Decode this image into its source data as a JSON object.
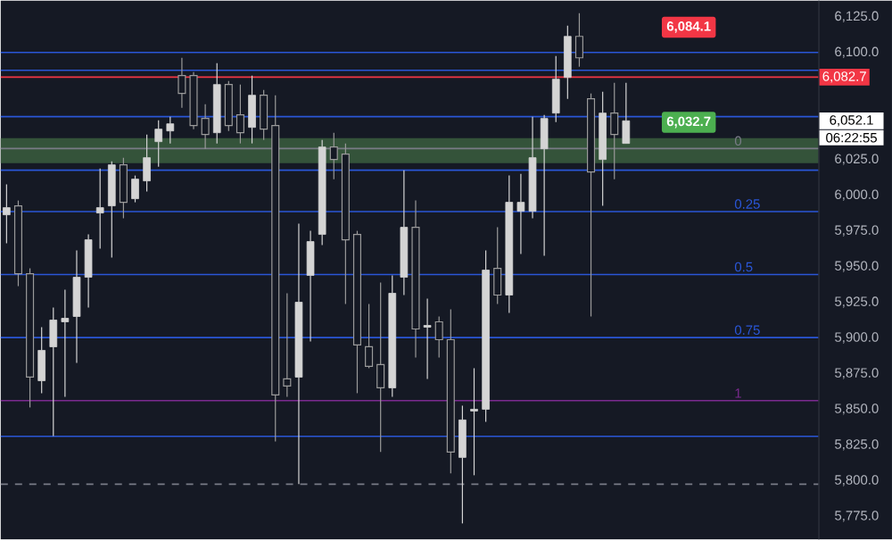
{
  "chart_data": {
    "type": "candlestick",
    "categories": [
      null,
      null,
      null,
      null,
      null,
      null,
      null,
      null,
      null,
      null,
      null,
      null,
      null,
      null,
      null,
      null,
      null,
      null,
      null,
      null,
      null,
      null,
      null,
      null,
      null,
      null,
      null,
      null,
      null,
      null,
      null,
      null,
      null,
      null,
      null,
      null,
      null,
      null,
      null,
      null,
      null,
      null,
      null,
      null,
      null,
      null,
      null,
      null,
      null,
      null,
      null,
      null,
      null,
      null,
      null,
      null,
      null,
      null,
      null,
      null,
      null,
      null,
      null,
      null,
      null,
      null,
      null,
      null,
      null,
      null
    ],
    "ohlc": [
      [
        5986.25,
        6007.5,
        5966.25,
        5991.25
      ],
      [
        5992.5,
        5996.25,
        5936.25,
        5945
      ],
      [
        5945,
        5948.75,
        5851.25,
        5872.5
      ],
      [
        5870,
        5907.5,
        5861.25,
        5891.25
      ],
      [
        5893.75,
        5921.25,
        5831.25,
        5912.5
      ],
      [
        5911.25,
        5933.75,
        5858.75,
        5913.75
      ],
      [
        5915,
        5961.25,
        5882.5,
        5942.5
      ],
      [
        5942.5,
        5972.5,
        5921.25,
        5968.75
      ],
      [
        5987.5,
        6018.75,
        5962.5,
        5991.25
      ],
      [
        5992.5,
        6023.75,
        5956.25,
        6021.25
      ],
      [
        6021.25,
        6026.25,
        5983.75,
        5995
      ],
      [
        5997.5,
        6013.75,
        5995,
        6011.25
      ],
      [
        6010,
        6042.5,
        6002.5,
        6026.25
      ],
      [
        6037.5,
        6052.5,
        6020,
        6046.25
      ],
      [
        6045,
        6055,
        6036.25,
        6050
      ],
      [
        6083.75,
        6096.25,
        6061.25,
        6071.25
      ],
      [
        6083.75,
        6086.25,
        6046.25,
        6048.75
      ],
      [
        6053.75,
        6063.75,
        6032.5,
        6042.5
      ],
      [
        6043.75,
        6092.5,
        6036.25,
        6077.5
      ],
      [
        6077.5,
        6080,
        6045,
        6048.75
      ],
      [
        6056.25,
        6077.5,
        6036.25,
        6043.75
      ],
      [
        6047.5,
        6083.75,
        6036.25,
        6070
      ],
      [
        6070,
        6073.75,
        6038.75,
        6046.25
      ],
      [
        6048.75,
        6070,
        5827.5,
        5860
      ],
      [
        5871.25,
        5931.25,
        5858.75,
        5866.25
      ],
      [
        5872.5,
        5980,
        5797.5,
        5925
      ],
      [
        5943.75,
        5975,
        5897.5,
        5967.5
      ],
      [
        5972.5,
        6038.75,
        5965,
        6033.75
      ],
      [
        6033.75,
        6043.75,
        6011.25,
        6025
      ],
      [
        6028.75,
        6036.25,
        5923.75,
        5968.75
      ],
      [
        5972.5,
        5975,
        5861.25,
        5895
      ],
      [
        5893.75,
        5923.75,
        5878.75,
        5880
      ],
      [
        5881.25,
        5938.75,
        5820,
        5865
      ],
      [
        5865,
        5943.75,
        5858.75,
        5931.25
      ],
      [
        5942.5,
        6017.5,
        5930,
        5977.5
      ],
      [
        5977.5,
        5996.25,
        5886.25,
        5906.25
      ],
      [
        5907.5,
        5927.5,
        5871.25,
        5908.75
      ],
      [
        5911.25,
        5915,
        5886.25,
        5898.75
      ],
      [
        5898.75,
        5920,
        5805,
        5820
      ],
      [
        5816.25,
        5852.5,
        5770,
        5842.5
      ],
      [
        5848.75,
        5878.75,
        5803.75,
        5850
      ],
      [
        5850,
        5961.25,
        5841.25,
        5947.5
      ],
      [
        5948.75,
        5977.5,
        5923.75,
        5930
      ],
      [
        5930,
        6013.75,
        5917.5,
        5995
      ],
      [
        5988.75,
        6015,
        5958.75,
        5995
      ],
      [
        5988.75,
        6055,
        5983.75,
        6026.25
      ],
      [
        6032.5,
        6056.25,
        5957.5,
        6053.75
      ],
      [
        6057.5,
        6097.5,
        6051.25,
        6081.25
      ],
      [
        6082.5,
        6118.75,
        6067.5,
        6111.25
      ],
      [
        6111.25,
        6127.5,
        6090,
        6096.25
      ],
      [
        6067.5,
        6071.25,
        5915,
        6016.25
      ],
      [
        6025,
        6072.5,
        5992.5,
        6057.5
      ],
      [
        6057.5,
        6078.75,
        6011.25,
        6042.5
      ],
      [
        6036.25,
        6078.75,
        6036.25,
        6052.1
      ],
      null,
      null,
      null,
      null,
      null,
      null,
      null,
      null,
      null,
      null,
      null,
      null,
      null,
      null,
      null,
      null
    ],
    "ylim": [
      5758.75,
      6136.25
    ],
    "yticks": [
      {
        "value": 5775,
        "label": "5,775.0"
      },
      {
        "value": 5800,
        "label": "5,800.0"
      },
      {
        "value": 5825,
        "label": "5,825.0"
      },
      {
        "value": 5850,
        "label": "5,850.0"
      },
      {
        "value": 5875,
        "label": "5,875.0"
      },
      {
        "value": 5900,
        "label": "5,900.0"
      },
      {
        "value": 5925,
        "label": "5,925.0"
      },
      {
        "value": 5950,
        "label": "5,950.0"
      },
      {
        "value": 5975,
        "label": "5,975.0"
      },
      {
        "value": 6000,
        "label": "6,000.0"
      },
      {
        "value": 6025,
        "label": "6,025.0"
      },
      {
        "value": 6100,
        "label": "6,100.0"
      },
      {
        "value": 6125,
        "label": "6,125.0"
      }
    ],
    "bands": [
      {
        "axis": "y",
        "from": 6022.5,
        "to": 6040,
        "color": "#34533a"
      }
    ],
    "ref_lines": [
      {
        "axis": "y",
        "value": 6082.7,
        "label": "6,082.7",
        "color": "#f23645"
      },
      {
        "axis": "y",
        "value": 6032.7,
        "color": "#787b86"
      },
      {
        "axis": "y",
        "value": 5988.5,
        "color": "#2a56d6"
      },
      {
        "axis": "y",
        "value": 5944.4,
        "color": "#2a56d6"
      },
      {
        "axis": "y",
        "value": 5900.2,
        "color": "#2a56d6"
      },
      {
        "axis": "y",
        "value": 5856,
        "color": "#7b2a8f"
      },
      {
        "axis": "y",
        "value": 6100,
        "color": "#2a56d6"
      },
      {
        "axis": "y",
        "value": 6087.5,
        "color": "#2a56d6"
      },
      {
        "axis": "y",
        "value": 6055,
        "color": "#2a56d6"
      },
      {
        "axis": "y",
        "value": 6017.5,
        "color": "#2a56d6"
      },
      {
        "axis": "y",
        "value": 5831,
        "color": "#2a56d6"
      },
      {
        "axis": "y",
        "value": 5797.5,
        "color": "#787b86",
        "line_style": "dashed"
      }
    ],
    "annotations": [
      "6,084.1",
      "6,032.7",
      {
        "text": "0",
        "y": 6032.7
      },
      {
        "text": "0.25",
        "y": 5988.5
      },
      {
        "text": "0.5",
        "y": 5944.4
      },
      {
        "text": "0.75",
        "y": 5900.2
      },
      {
        "text": "1",
        "y": 5856
      },
      "6,052.1",
      "06:22:55"
    ]
  }
}
